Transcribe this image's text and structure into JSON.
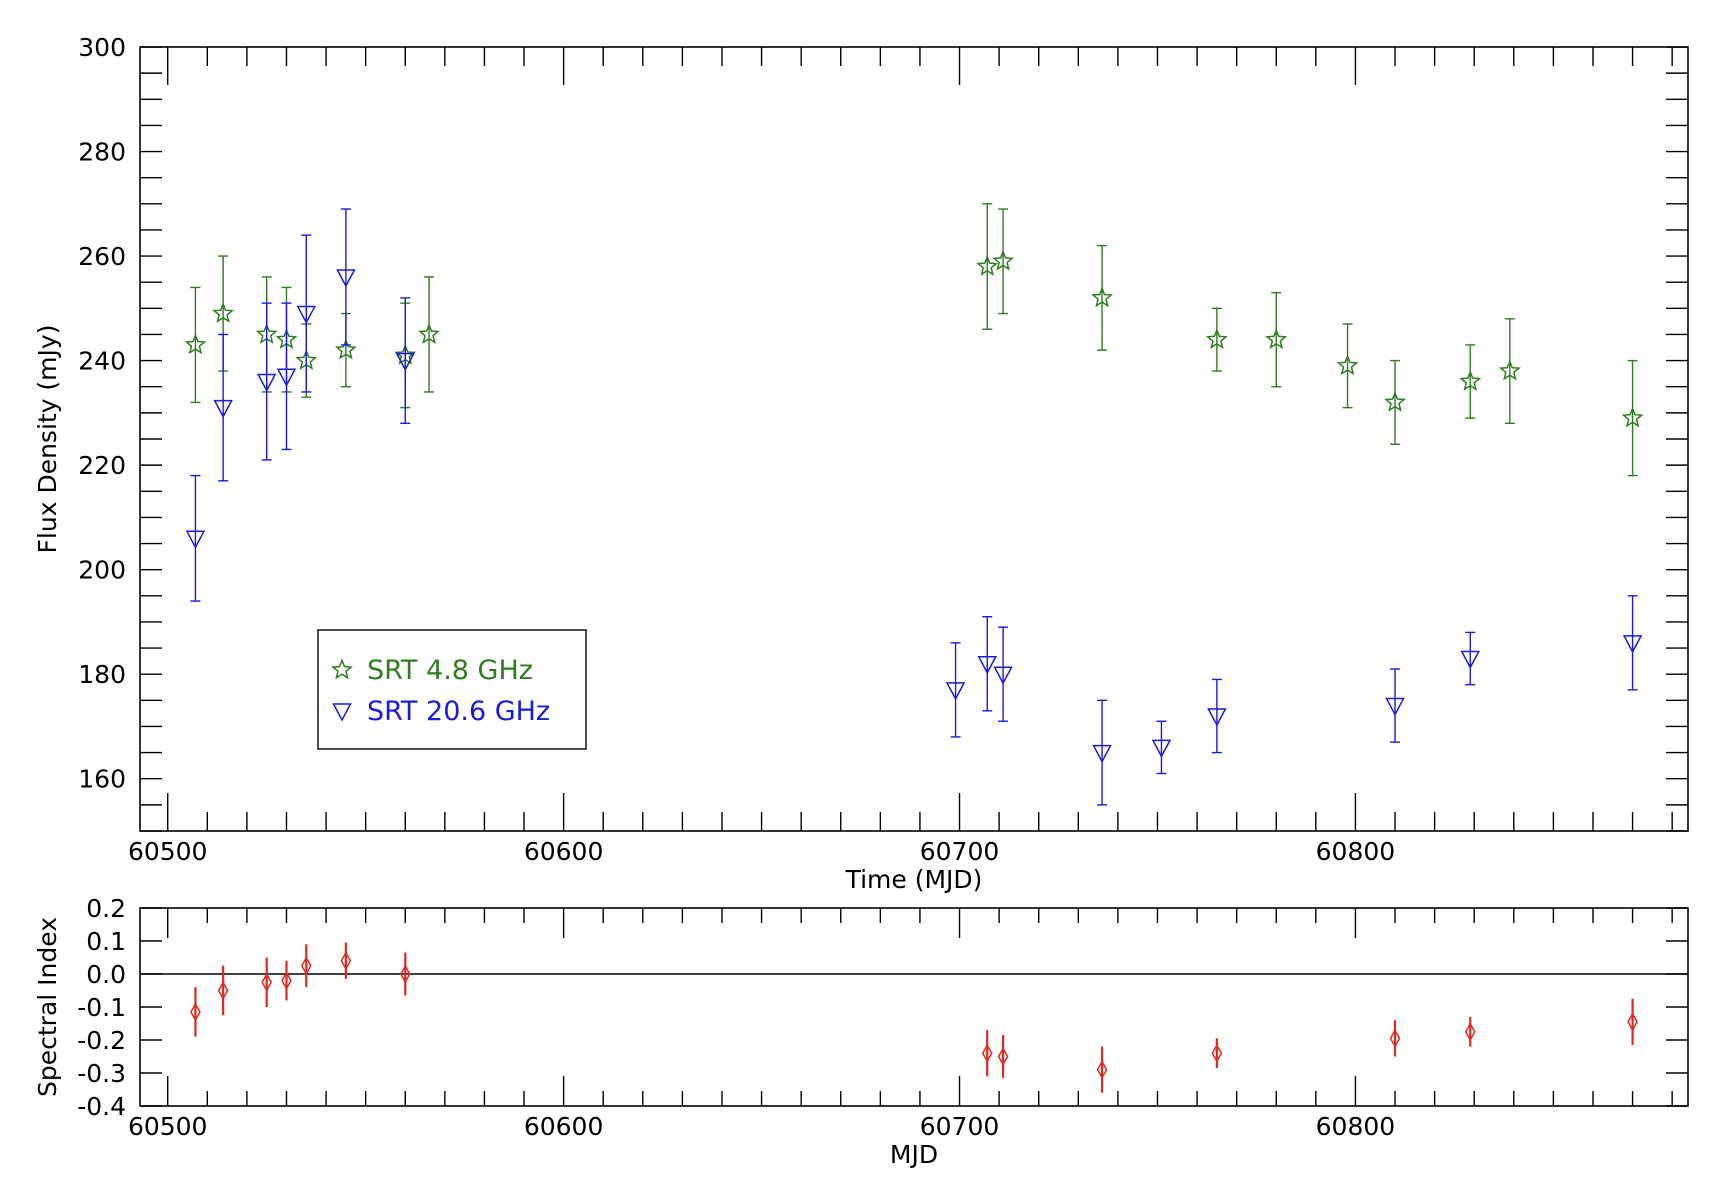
{
  "chart_data": [
    {
      "type": "scatter",
      "xlabel": "Time (MJD)",
      "ylabel": "Flux Density (mJy)",
      "xlim": [
        60493,
        60884
      ],
      "ylim": [
        150,
        300
      ],
      "x_ticks": [
        60500,
        60600,
        60700,
        60800
      ],
      "y_ticks": [
        160,
        180,
        200,
        220,
        240,
        260,
        280,
        300
      ],
      "grid": false,
      "legend_position": "lower-left",
      "series": [
        {
          "name": "SRT 4.8 GHz",
          "marker": "star",
          "color": "#2e7d1e",
          "points": [
            {
              "x": 60507,
              "y": 243,
              "err": 11
            },
            {
              "x": 60514,
              "y": 249,
              "err": 11
            },
            {
              "x": 60525,
              "y": 245,
              "err": 11
            },
            {
              "x": 60530,
              "y": 244,
              "err": 10
            },
            {
              "x": 60535,
              "y": 240,
              "err": 7
            },
            {
              "x": 60545,
              "y": 242,
              "err": 7
            },
            {
              "x": 60560,
              "y": 241,
              "err": 10
            },
            {
              "x": 60566,
              "y": 245,
              "err": 11
            },
            {
              "x": 60707,
              "y": 258,
              "err": 12
            },
            {
              "x": 60711,
              "y": 259,
              "err": 10
            },
            {
              "x": 60736,
              "y": 252,
              "err": 10
            },
            {
              "x": 60765,
              "y": 244,
              "err": 6
            },
            {
              "x": 60780,
              "y": 244,
              "err": 9
            },
            {
              "x": 60798,
              "y": 239,
              "err": 8
            },
            {
              "x": 60810,
              "y": 232,
              "err": 8
            },
            {
              "x": 60829,
              "y": 236,
              "err": 7
            },
            {
              "x": 60839,
              "y": 238,
              "err": 10
            },
            {
              "x": 60870,
              "y": 229,
              "err": 11
            }
          ]
        },
        {
          "name": "SRT 20.6 GHz",
          "marker": "triangle-down",
          "color": "#1a1ae0",
          "points": [
            {
              "x": 60507,
              "y": 206,
              "err": 12
            },
            {
              "x": 60514,
              "y": 231,
              "err": 14
            },
            {
              "x": 60525,
              "y": 236,
              "err": 15
            },
            {
              "x": 60530,
              "y": 237,
              "err": 14
            },
            {
              "x": 60535,
              "y": 249,
              "err": 15
            },
            {
              "x": 60545,
              "y": 256,
              "err": 13
            },
            {
              "x": 60560,
              "y": 240,
              "err": 12
            },
            {
              "x": 60699,
              "y": 177,
              "err": 9
            },
            {
              "x": 60707,
              "y": 182,
              "err": 9
            },
            {
              "x": 60711,
              "y": 180,
              "err": 9
            },
            {
              "x": 60736,
              "y": 165,
              "err": 10
            },
            {
              "x": 60751,
              "y": 166,
              "err": 5
            },
            {
              "x": 60765,
              "y": 172,
              "err": 7
            },
            {
              "x": 60810,
              "y": 174,
              "err": 7
            },
            {
              "x": 60829,
              "y": 183,
              "err": 5
            },
            {
              "x": 60870,
              "y": 186,
              "err": 9
            }
          ]
        }
      ]
    },
    {
      "type": "scatter",
      "xlabel": "MJD",
      "ylabel": "Spectral Index",
      "xlim": [
        60493,
        60884
      ],
      "ylim": [
        -0.4,
        0.2
      ],
      "x_ticks": [
        60500,
        60600,
        60700,
        60800
      ],
      "y_ticks": [
        -0.4,
        -0.3,
        -0.2,
        -0.1,
        0.0,
        0.1,
        0.2
      ],
      "y_tick_labels": [
        "-0.4",
        "-0.3",
        "-0.2",
        "-0.1",
        "0.0",
        "0.1",
        "0.2"
      ],
      "reference_line_y": 0,
      "grid": false,
      "series": [
        {
          "marker": "diamond",
          "color": "#e0281e",
          "points": [
            {
              "x": 60507,
              "y": -0.115,
              "err": 0.075
            },
            {
              "x": 60514,
              "y": -0.05,
              "err": 0.075
            },
            {
              "x": 60525,
              "y": -0.025,
              "err": 0.075
            },
            {
              "x": 60530,
              "y": -0.02,
              "err": 0.06
            },
            {
              "x": 60535,
              "y": 0.025,
              "err": 0.065
            },
            {
              "x": 60545,
              "y": 0.04,
              "err": 0.055
            },
            {
              "x": 60560,
              "y": 0.0,
              "err": 0.065
            },
            {
              "x": 60707,
              "y": -0.24,
              "err": 0.07
            },
            {
              "x": 60711,
              "y": -0.25,
              "err": 0.065
            },
            {
              "x": 60736,
              "y": -0.29,
              "err": 0.07
            },
            {
              "x": 60765,
              "y": -0.24,
              "err": 0.045
            },
            {
              "x": 60810,
              "y": -0.195,
              "err": 0.055
            },
            {
              "x": 60829,
              "y": -0.175,
              "err": 0.045
            },
            {
              "x": 60870,
              "y": -0.145,
              "err": 0.07
            }
          ]
        }
      ]
    }
  ]
}
